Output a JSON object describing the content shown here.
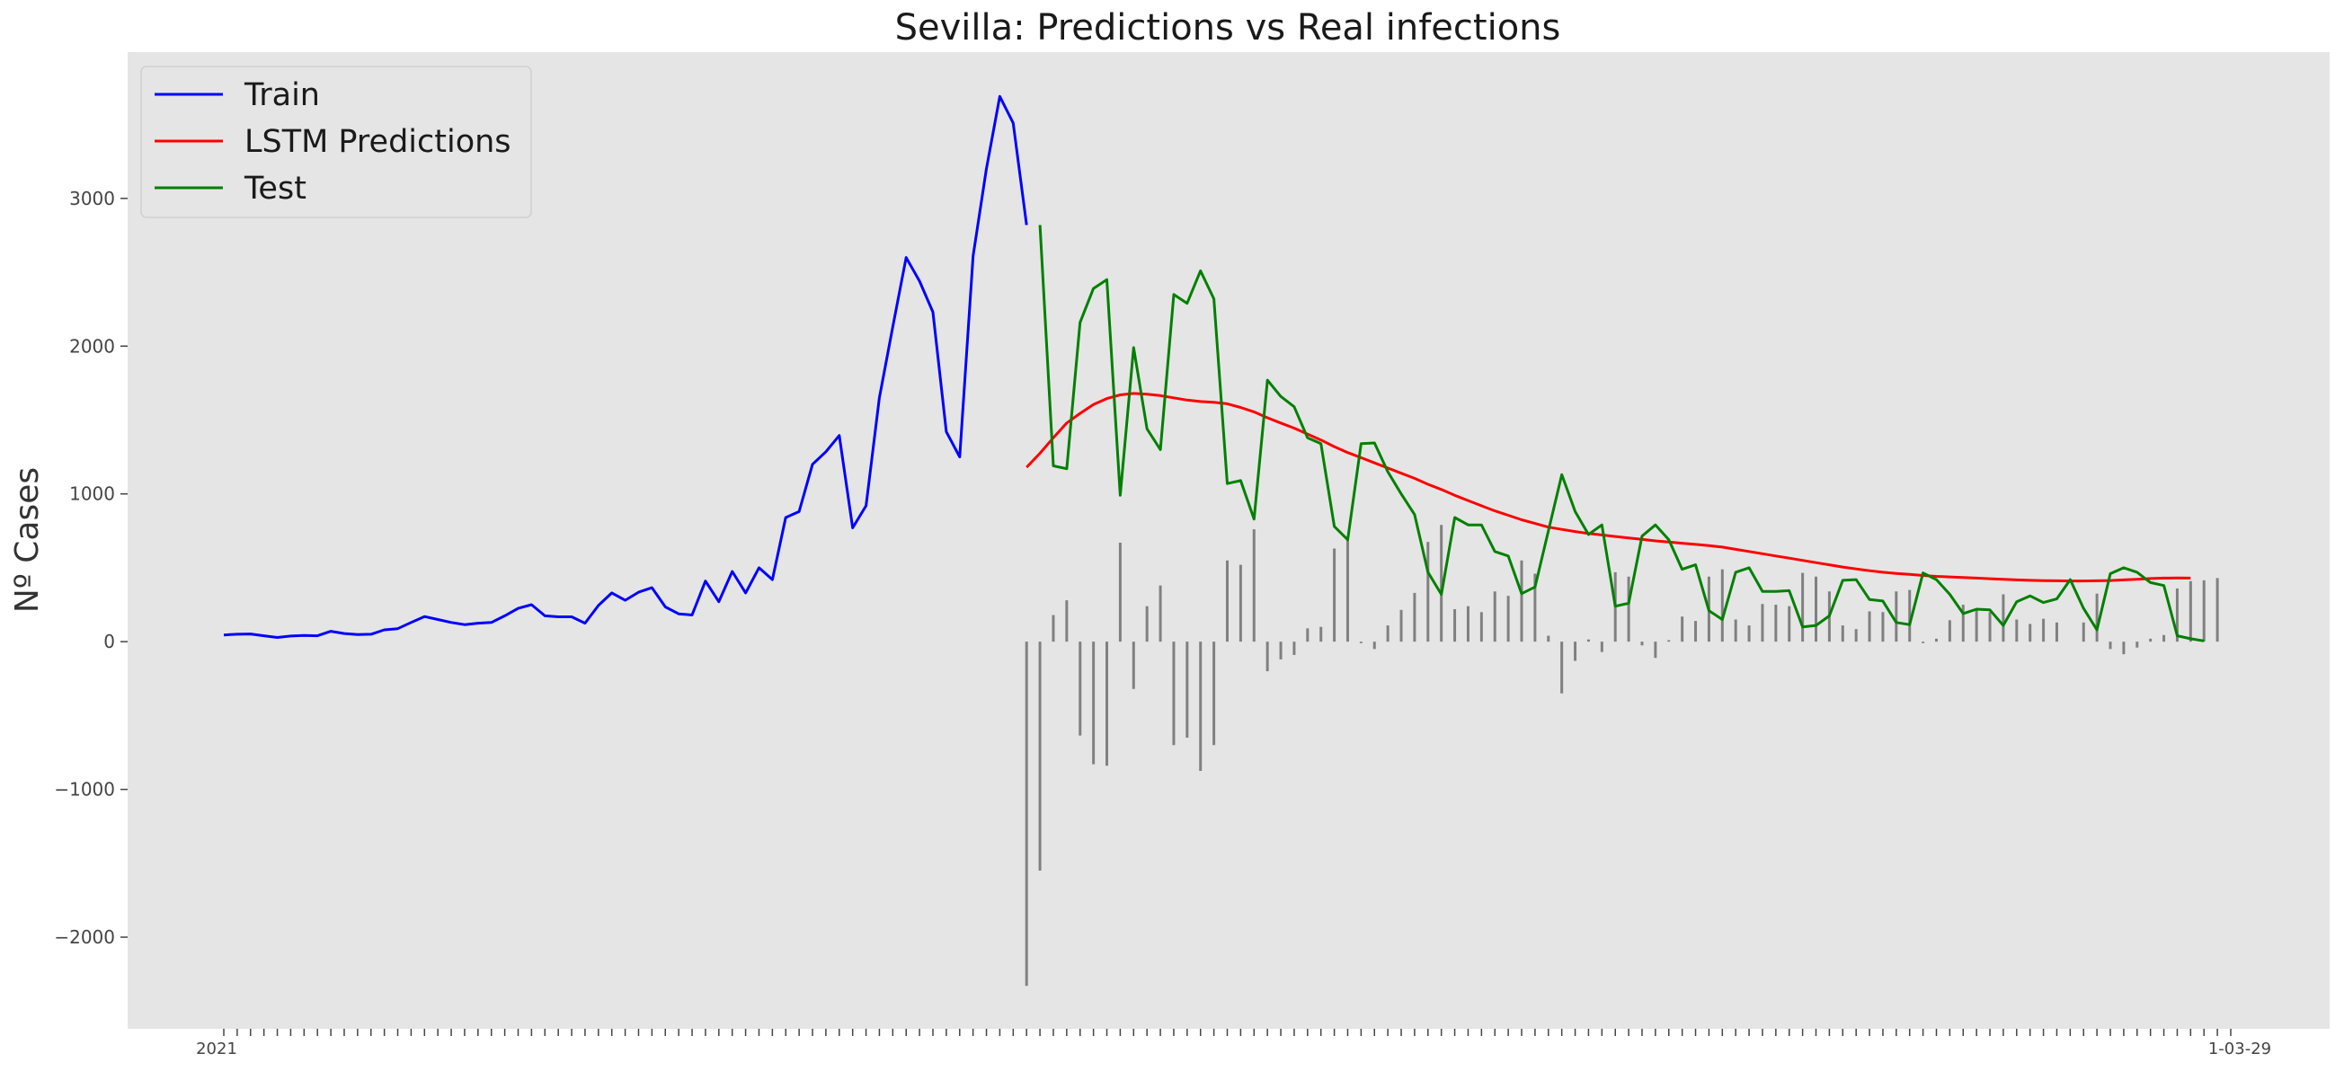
{
  "chart_data": {
    "type": "line",
    "title": "Sevilla: Predictions vs Real infections",
    "ylabel": "Nº Cases",
    "xlabel": "",
    "ylim": [
      -2620,
      3990
    ],
    "yticks": [
      -2000,
      -1000,
      0,
      1000,
      2000,
      3000
    ],
    "ytick_labels": [
      "−2000",
      "−1000",
      "0",
      "1000",
      "2000",
      "3000"
    ],
    "x_index_range": [
      0,
      150
    ],
    "x_first_tick_label": "2021",
    "x_last_tick_label": "1-03-29",
    "grid": false,
    "legend_position": "upper-left",
    "colors": {
      "background": "#e5e5e5",
      "train": "#0000ff",
      "predictions": "#ff0000",
      "test": "#008000",
      "residuals": "#808080"
    },
    "legend": [
      "Train",
      "LSTM Predictions",
      "Test"
    ],
    "series": [
      {
        "name": "Train",
        "color": "#0000ff",
        "x_start": 0,
        "values": [
          45,
          50,
          52,
          40,
          28,
          38,
          42,
          40,
          70,
          55,
          48,
          50,
          80,
          88,
          130,
          170,
          150,
          130,
          115,
          125,
          130,
          175,
          225,
          250,
          175,
          168,
          168,
          125,
          245,
          330,
          280,
          335,
          365,
          235,
          188,
          180,
          410,
          270,
          475,
          330,
          500,
          420,
          840,
          880,
          1200,
          1285,
          1395,
          770,
          920,
          1650,
          2130,
          2600,
          2440,
          2230,
          1420,
          1250,
          2610,
          3200,
          3690,
          3510,
          2820
        ]
      },
      {
        "name": "LSTM Predictions",
        "color": "#ff0000",
        "x_start": 60,
        "values": [
          1180,
          1275,
          1380,
          1480,
          1545,
          1605,
          1645,
          1670,
          1680,
          1675,
          1665,
          1650,
          1635,
          1625,
          1620,
          1610,
          1585,
          1555,
          1515,
          1480,
          1445,
          1405,
          1365,
          1320,
          1280,
          1245,
          1210,
          1175,
          1140,
          1105,
          1065,
          1030,
          990,
          955,
          920,
          885,
          855,
          825,
          800,
          775,
          760,
          745,
          732,
          722,
          712,
          702,
          692,
          682,
          674,
          666,
          658,
          650,
          640,
          625,
          610,
          595,
          580,
          565,
          550,
          535,
          520,
          505,
          492,
          480,
          470,
          462,
          455,
          448,
          442,
          438,
          434,
          430,
          426,
          422,
          418,
          415,
          413,
          412,
          411,
          411,
          412,
          414,
          418,
          422,
          427,
          430,
          431,
          430
        ]
      },
      {
        "name": "Test",
        "color": "#008000",
        "x_start": 61,
        "values": [
          2820,
          1190,
          1170,
          2160,
          2390,
          2450,
          990,
          1990,
          1440,
          1300,
          2350,
          2290,
          2510,
          2320,
          1070,
          1090,
          830,
          1770,
          1660,
          1590,
          1380,
          1340,
          780,
          690,
          1340,
          1345,
          1150,
          1000,
          860,
          470,
          320,
          840,
          790,
          790,
          610,
          580,
          325,
          370,
          750,
          1130,
          880,
          725,
          790,
          240,
          260,
          715,
          790,
          690,
          490,
          520,
          210,
          150,
          470,
          500,
          340,
          340,
          345,
          100,
          110,
          175,
          415,
          420,
          285,
          275,
          130,
          115,
          465,
          420,
          320,
          190,
          220,
          215,
          110,
          270,
          310,
          265,
          290,
          420,
          225,
          80,
          460,
          500,
          470,
          400,
          380,
          40,
          20,
          5
        ]
      },
      {
        "name": "Residuals",
        "color": "#808080",
        "x_start": 60,
        "values": [
          -2330,
          -1550,
          180,
          280,
          -635,
          -830,
          -840,
          670,
          -320,
          240,
          380,
          -700,
          -650,
          -875,
          -700,
          550,
          520,
          760,
          -200,
          -120,
          -90,
          90,
          100,
          630,
          690,
          -10,
          -50,
          110,
          215,
          330,
          675,
          790,
          220,
          240,
          200,
          340,
          310,
          550,
          460,
          40,
          -350,
          -130,
          15,
          -70,
          470,
          440,
          -25,
          -110,
          10,
          170,
          140,
          440,
          490,
          150,
          110,
          255,
          250,
          240,
          465,
          440,
          340,
          110,
          85,
          205,
          200,
          340,
          350,
          -10,
          20,
          145,
          250,
          220,
          200,
          320,
          150,
          120,
          155,
          130,
          0,
          130,
          325,
          -50,
          -85,
          -40,
          20,
          45,
          360,
          410,
          415,
          430
        ]
      }
    ]
  }
}
